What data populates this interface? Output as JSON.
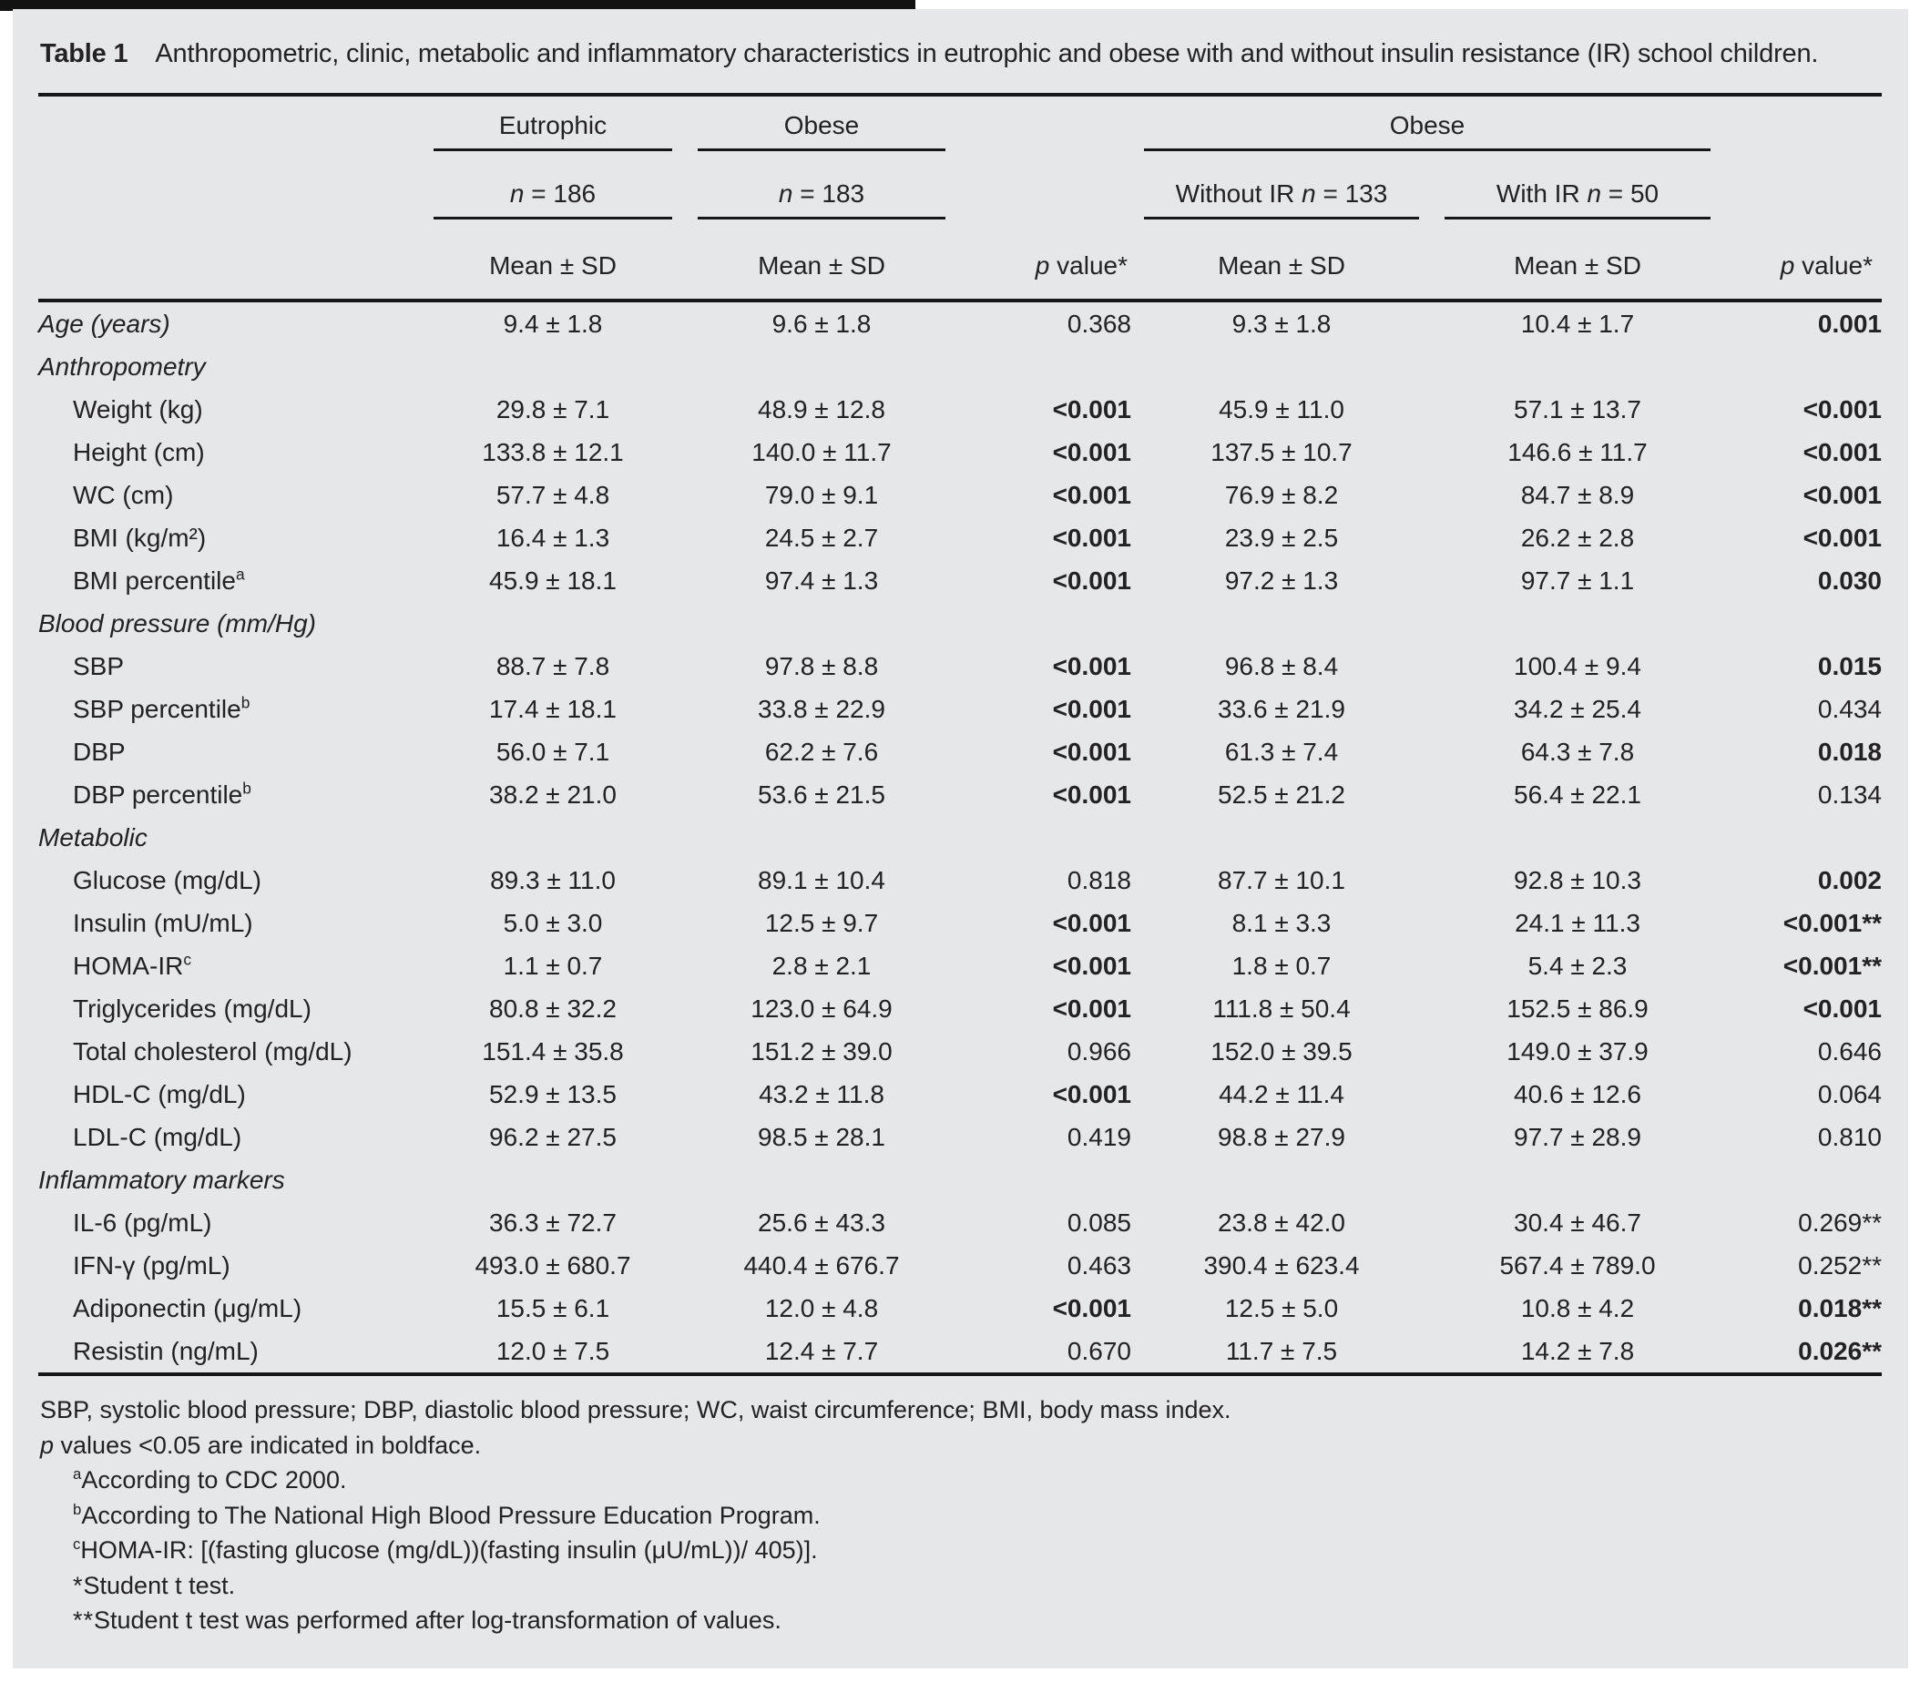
{
  "title": {
    "label": "Table 1",
    "text": "Anthropometric, clinic, metabolic and inflammatory characteristics in eutrophic and obese with and without insulin resistance (IR) school children."
  },
  "header": {
    "eutrophic": "Eutrophic",
    "obese": "Obese",
    "obese_split": "Obese",
    "n_italic": "n",
    "n186": " = 186",
    "n183": " = 183",
    "without_ir": "Without IR ",
    "n133": " = 133",
    "with_ir": "With IR ",
    "n50": " = 50",
    "mean_sd": "Mean ± SD",
    "p_italic": "p",
    "p_rest": " value*"
  },
  "table": {
    "rows": [
      {
        "label": "Age (years)",
        "sup": "",
        "italic": true,
        "indent": false,
        "section": false,
        "c1": "9.4 ± 1.8",
        "c2": "9.6 ± 1.8",
        "p1": "0.368",
        "p1_bold": false,
        "c3": "9.3 ± 1.8",
        "c4": "10.4 ± 1.7",
        "p2": "0.001",
        "p2_bold": true
      },
      {
        "label": "Anthropometry",
        "sup": "",
        "italic": true,
        "indent": false,
        "section": true,
        "c1": "",
        "c2": "",
        "p1": "",
        "p1_bold": false,
        "c3": "",
        "c4": "",
        "p2": "",
        "p2_bold": false
      },
      {
        "label": "Weight (kg)",
        "sup": "",
        "italic": false,
        "indent": true,
        "section": false,
        "c1": "29.8 ± 7.1",
        "c2": "48.9 ± 12.8",
        "p1": "<0.001",
        "p1_bold": true,
        "c3": "45.9 ± 11.0",
        "c4": "57.1 ± 13.7",
        "p2": "<0.001",
        "p2_bold": true
      },
      {
        "label": "Height (cm)",
        "sup": "",
        "italic": false,
        "indent": true,
        "section": false,
        "c1": "133.8 ± 12.1",
        "c2": "140.0 ± 11.7",
        "p1": "<0.001",
        "p1_bold": true,
        "c3": "137.5 ± 10.7",
        "c4": "146.6 ± 11.7",
        "p2": "<0.001",
        "p2_bold": true
      },
      {
        "label": "WC (cm)",
        "sup": "",
        "italic": false,
        "indent": true,
        "section": false,
        "c1": "57.7 ± 4.8",
        "c2": "79.0 ± 9.1",
        "p1": "<0.001",
        "p1_bold": true,
        "c3": "76.9 ± 8.2",
        "c4": "84.7 ± 8.9",
        "p2": "<0.001",
        "p2_bold": true
      },
      {
        "label": "BMI (kg/m²)",
        "sup": "",
        "italic": false,
        "indent": true,
        "section": false,
        "c1": "16.4 ± 1.3",
        "c2": "24.5 ± 2.7",
        "p1": "<0.001",
        "p1_bold": true,
        "c3": "23.9 ± 2.5",
        "c4": "26.2 ± 2.8",
        "p2": "<0.001",
        "p2_bold": true
      },
      {
        "label": "BMI percentile",
        "sup": "a",
        "italic": false,
        "indent": true,
        "section": false,
        "c1": "45.9 ± 18.1",
        "c2": "97.4 ± 1.3",
        "p1": "<0.001",
        "p1_bold": true,
        "c3": "97.2 ± 1.3",
        "c4": "97.7 ± 1.1",
        "p2": "0.030",
        "p2_bold": true
      },
      {
        "label": "Blood pressure (mm/Hg)",
        "sup": "",
        "italic": true,
        "indent": false,
        "section": true,
        "c1": "",
        "c2": "",
        "p1": "",
        "p1_bold": false,
        "c3": "",
        "c4": "",
        "p2": "",
        "p2_bold": false
      },
      {
        "label": "SBP",
        "sup": "",
        "italic": false,
        "indent": true,
        "section": false,
        "c1": "88.7 ± 7.8",
        "c2": "97.8 ± 8.8",
        "p1": "<0.001",
        "p1_bold": true,
        "c3": "96.8 ± 8.4",
        "c4": "100.4 ± 9.4",
        "p2": "0.015",
        "p2_bold": true
      },
      {
        "label": "SBP percentile",
        "sup": "b",
        "italic": false,
        "indent": true,
        "section": false,
        "c1": "17.4 ± 18.1",
        "c2": "33.8 ± 22.9",
        "p1": "<0.001",
        "p1_bold": true,
        "c3": "33.6 ± 21.9",
        "c4": "34.2 ± 25.4",
        "p2": "0.434",
        "p2_bold": false
      },
      {
        "label": "DBP",
        "sup": "",
        "italic": false,
        "indent": true,
        "section": false,
        "c1": "56.0 ± 7.1",
        "c2": "62.2 ± 7.6",
        "p1": "<0.001",
        "p1_bold": true,
        "c3": "61.3 ± 7.4",
        "c4": "64.3 ± 7.8",
        "p2": "0.018",
        "p2_bold": true
      },
      {
        "label": "DBP percentile",
        "sup": "b",
        "italic": false,
        "indent": true,
        "section": false,
        "c1": "38.2 ± 21.0",
        "c2": "53.6 ± 21.5",
        "p1": "<0.001",
        "p1_bold": true,
        "c3": "52.5 ± 21.2",
        "c4": "56.4 ± 22.1",
        "p2": "0.134",
        "p2_bold": false
      },
      {
        "label": "Metabolic",
        "sup": "",
        "italic": true,
        "indent": false,
        "section": true,
        "c1": "",
        "c2": "",
        "p1": "",
        "p1_bold": false,
        "c3": "",
        "c4": "",
        "p2": "",
        "p2_bold": false
      },
      {
        "label": "Glucose (mg/dL)",
        "sup": "",
        "italic": false,
        "indent": true,
        "section": false,
        "c1": "89.3 ± 11.0",
        "c2": "89.1 ± 10.4",
        "p1": "0.818",
        "p1_bold": false,
        "c3": "87.7 ± 10.1",
        "c4": "92.8 ± 10.3",
        "p2": "0.002",
        "p2_bold": true
      },
      {
        "label": "Insulin (mU/mL)",
        "sup": "",
        "italic": false,
        "indent": true,
        "section": false,
        "c1": "5.0 ± 3.0",
        "c2": "12.5 ± 9.7",
        "p1": "<0.001",
        "p1_bold": true,
        "c3": "8.1 ± 3.3",
        "c4": "24.1 ± 11.3",
        "p2": "<0.001**",
        "p2_bold": true
      },
      {
        "label": "HOMA-IR",
        "sup": "c",
        "italic": false,
        "indent": true,
        "section": false,
        "c1": "1.1 ± 0.7",
        "c2": "2.8 ± 2.1",
        "p1": "<0.001",
        "p1_bold": true,
        "c3": "1.8 ± 0.7",
        "c4": "5.4 ± 2.3",
        "p2": "<0.001**",
        "p2_bold": true
      },
      {
        "label": "Triglycerides (mg/dL)",
        "sup": "",
        "italic": false,
        "indent": true,
        "section": false,
        "c1": "80.8 ± 32.2",
        "c2": "123.0 ± 64.9",
        "p1": "<0.001",
        "p1_bold": true,
        "c3": "111.8 ± 50.4",
        "c4": "152.5 ± 86.9",
        "p2": "<0.001",
        "p2_bold": true
      },
      {
        "label": "Total cholesterol (mg/dL)",
        "sup": "",
        "italic": false,
        "indent": true,
        "section": false,
        "c1": "151.4 ± 35.8",
        "c2": "151.2 ± 39.0",
        "p1": "0.966",
        "p1_bold": false,
        "c3": "152.0 ± 39.5",
        "c4": "149.0 ± 37.9",
        "p2": "0.646",
        "p2_bold": false
      },
      {
        "label": "HDL-C (mg/dL)",
        "sup": "",
        "italic": false,
        "indent": true,
        "section": false,
        "c1": "52.9 ± 13.5",
        "c2": "43.2 ± 11.8",
        "p1": "<0.001",
        "p1_bold": true,
        "c3": "44.2 ± 11.4",
        "c4": "40.6 ± 12.6",
        "p2": "0.064",
        "p2_bold": false
      },
      {
        "label": "LDL-C (mg/dL)",
        "sup": "",
        "italic": false,
        "indent": true,
        "section": false,
        "c1": "96.2 ± 27.5",
        "c2": "98.5 ± 28.1",
        "p1": "0.419",
        "p1_bold": false,
        "c3": "98.8 ± 27.9",
        "c4": "97.7 ± 28.9",
        "p2": "0.810",
        "p2_bold": false
      },
      {
        "label": "Inflammatory markers",
        "sup": "",
        "italic": true,
        "indent": false,
        "section": true,
        "c1": "",
        "c2": "",
        "p1": "",
        "p1_bold": false,
        "c3": "",
        "c4": "",
        "p2": "",
        "p2_bold": false
      },
      {
        "label": "IL-6 (pg/mL)",
        "sup": "",
        "italic": false,
        "indent": true,
        "section": false,
        "c1": "36.3 ± 72.7",
        "c2": "25.6 ± 43.3",
        "p1": "0.085",
        "p1_bold": false,
        "c3": "23.8 ± 42.0",
        "c4": "30.4 ± 46.7",
        "p2": "0.269**",
        "p2_bold": false
      },
      {
        "label": "IFN-γ (pg/mL)",
        "sup": "",
        "italic": false,
        "indent": true,
        "section": false,
        "c1": "493.0 ± 680.7",
        "c2": "440.4 ± 676.7",
        "p1": "0.463",
        "p1_bold": false,
        "c3": "390.4 ± 623.4",
        "c4": "567.4 ± 789.0",
        "p2": "0.252**",
        "p2_bold": false
      },
      {
        "label": "Adiponectin (μg/mL)",
        "sup": "",
        "italic": false,
        "indent": true,
        "section": false,
        "c1": "15.5 ± 6.1",
        "c2": "12.0 ± 4.8",
        "p1": "<0.001",
        "p1_bold": true,
        "c3": "12.5 ± 5.0",
        "c4": "10.8 ± 4.2",
        "p2": "0.018**",
        "p2_bold": true
      },
      {
        "label": "Resistin (ng/mL)",
        "sup": "",
        "italic": false,
        "indent": true,
        "section": false,
        "c1": "12.0 ± 7.5",
        "c2": "12.4 ± 7.7",
        "p1": "0.670",
        "p1_bold": false,
        "c3": "11.7 ± 7.5",
        "c4": "14.2 ± 7.8",
        "p2": "0.026**",
        "p2_bold": true
      }
    ]
  },
  "footnotes": {
    "abbrev": "SBP, systolic blood pressure; DBP, diastolic blood pressure; WC, waist circumference; BMI, body mass index.",
    "bold_note_italic": "p",
    "bold_note": " values <0.05 are indicated in boldface.",
    "a_marker": "a",
    "a_text": "According to CDC 2000.",
    "b_marker": "b",
    "b_text": "According to The National High Blood Pressure Education Program.",
    "c_marker": "c",
    "c_text": "HOMA-IR: [(fasting glucose (mg/dL))(fasting insulin (μU/mL))/ 405)].",
    "star_marker": "*",
    "star_text": "Student t test.",
    "dstar_marker": "**",
    "dstar_text": "Student t test was performed after log-transformation of values."
  }
}
